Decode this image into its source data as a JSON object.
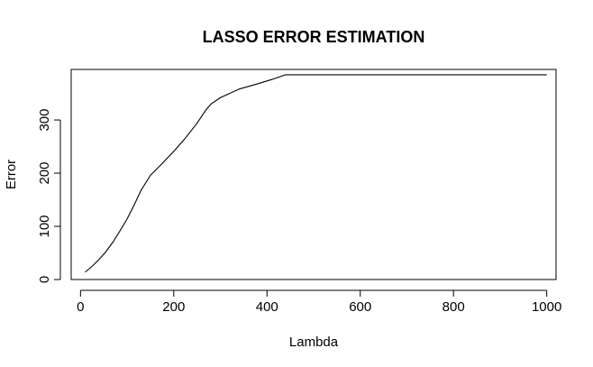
{
  "chart_data": {
    "type": "line",
    "title": "LASSO ERROR ESTIMATION",
    "xlabel": "Lambda",
    "ylabel": "Error",
    "xlim": [
      -20,
      1020
    ],
    "ylim": [
      0,
      395
    ],
    "xticks": [
      0,
      200,
      400,
      600,
      800,
      1000
    ],
    "yticks": [
      0,
      100,
      200,
      300
    ],
    "grid": false,
    "series": [
      {
        "color": "#000000",
        "x": [
          10,
          25,
          40,
          55,
          70,
          85,
          100,
          115,
          130,
          150,
          175,
          200,
          225,
          250,
          270,
          280,
          300,
          340,
          380,
          410,
          440,
          450,
          500,
          600,
          700,
          800,
          900,
          1000
        ],
        "y": [
          14,
          25,
          38,
          53,
          71,
          92,
          114,
          140,
          168,
          196,
          218,
          241,
          266,
          294,
          320,
          330,
          342,
          358,
          368,
          376,
          385,
          385,
          385,
          385,
          385,
          385,
          385,
          385
        ]
      }
    ]
  }
}
